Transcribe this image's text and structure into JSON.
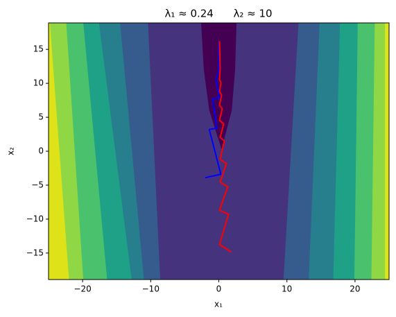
{
  "chart_data": {
    "type": "contour",
    "title": "λ₁ ≈ 0.24      λ₂ ≈ 10",
    "xlabel": "x₁",
    "ylabel": "x₂",
    "xlim": [
      -25,
      25
    ],
    "ylim": [
      -18.9,
      18.9
    ],
    "xticks": [
      {
        "value": -20,
        "label": "−20"
      },
      {
        "value": -10,
        "label": "−10"
      },
      0,
      10,
      20
    ],
    "yticks": [
      {
        "value": -15,
        "label": "−15"
      },
      {
        "value": -10,
        "label": "−10"
      },
      {
        "value": -5,
        "label": "−5"
      },
      0,
      5,
      10,
      15
    ],
    "grid": false,
    "regions": [
      {
        "color": "#dde318",
        "x": [
          -25,
          -25,
          25,
          25
        ],
        "y": [
          18.9,
          -18.9,
          -18.9,
          18.9
        ]
      },
      {
        "color": "#8fd744",
        "x": [
          -24.8,
          -22,
          24.4,
          24.4
        ],
        "y": [
          18.9,
          -18.9,
          -18.9,
          18.9
        ]
      },
      {
        "color": "#4ac16d",
        "x": [
          -22.4,
          -19.9,
          22.4,
          22.9
        ],
        "y": [
          18.9,
          -18.9,
          -18.9,
          18.9
        ]
      },
      {
        "color": "#1fa187",
        "x": [
          -19.9,
          -16.4,
          19.9,
          20.4
        ],
        "y": [
          18.9,
          -18.9,
          -18.9,
          18.9
        ]
      },
      {
        "color": "#277f8e",
        "x": [
          -17.6,
          -12.8,
          16.8,
          17.8
        ],
        "y": [
          18.9,
          -18.9,
          -18.9,
          18.9
        ]
      },
      {
        "color": "#365c8d",
        "x": [
          -14.5,
          -11,
          13.2,
          14.8
        ],
        "y": [
          18.9,
          -18.9,
          -18.9,
          18.9
        ]
      },
      {
        "color": "#46337e",
        "x": [
          -10.4,
          -8.6,
          9.5,
          11.7
        ],
        "y": [
          18.9,
          -18.9,
          -18.9,
          18.9
        ]
      },
      {
        "color": "#440154",
        "x": [
          -2.6,
          -2.2,
          -1.4,
          0.4,
          1.9,
          2.4,
          2.6
        ],
        "y": [
          18.9,
          12,
          6,
          0.3,
          6,
          12,
          18.9
        ]
      }
    ],
    "series": [
      {
        "color": "#0000ff",
        "x": [
          -2,
          0.3,
          -1.4,
          -0.3,
          -0.9,
          0.1,
          -0.4,
          0,
          0
        ],
        "y": [
          -3.9,
          -3.4,
          3.2,
          3.4,
          7.7,
          7.8,
          10.5,
          12,
          16
        ]
      },
      {
        "color": "#ff0000",
        "x": [
          1.83,
          0.1,
          1.43,
          0.1,
          1.32,
          0.2,
          1.12,
          0.2,
          0.81,
          0.2,
          0.71,
          0.1,
          0.51,
          0.1,
          0.41,
          0.1,
          0.31,
          0.1,
          0.2,
          0.1
        ],
        "y": [
          -14.85,
          -13.74,
          -9.29,
          -8.69,
          -5.25,
          -4.55,
          -1.82,
          -1.21,
          1.52,
          2.02,
          4.04,
          4.55,
          6.26,
          6.77,
          8.28,
          8.79,
          10.1,
          10.6,
          12.1,
          16.2
        ]
      }
    ]
  }
}
